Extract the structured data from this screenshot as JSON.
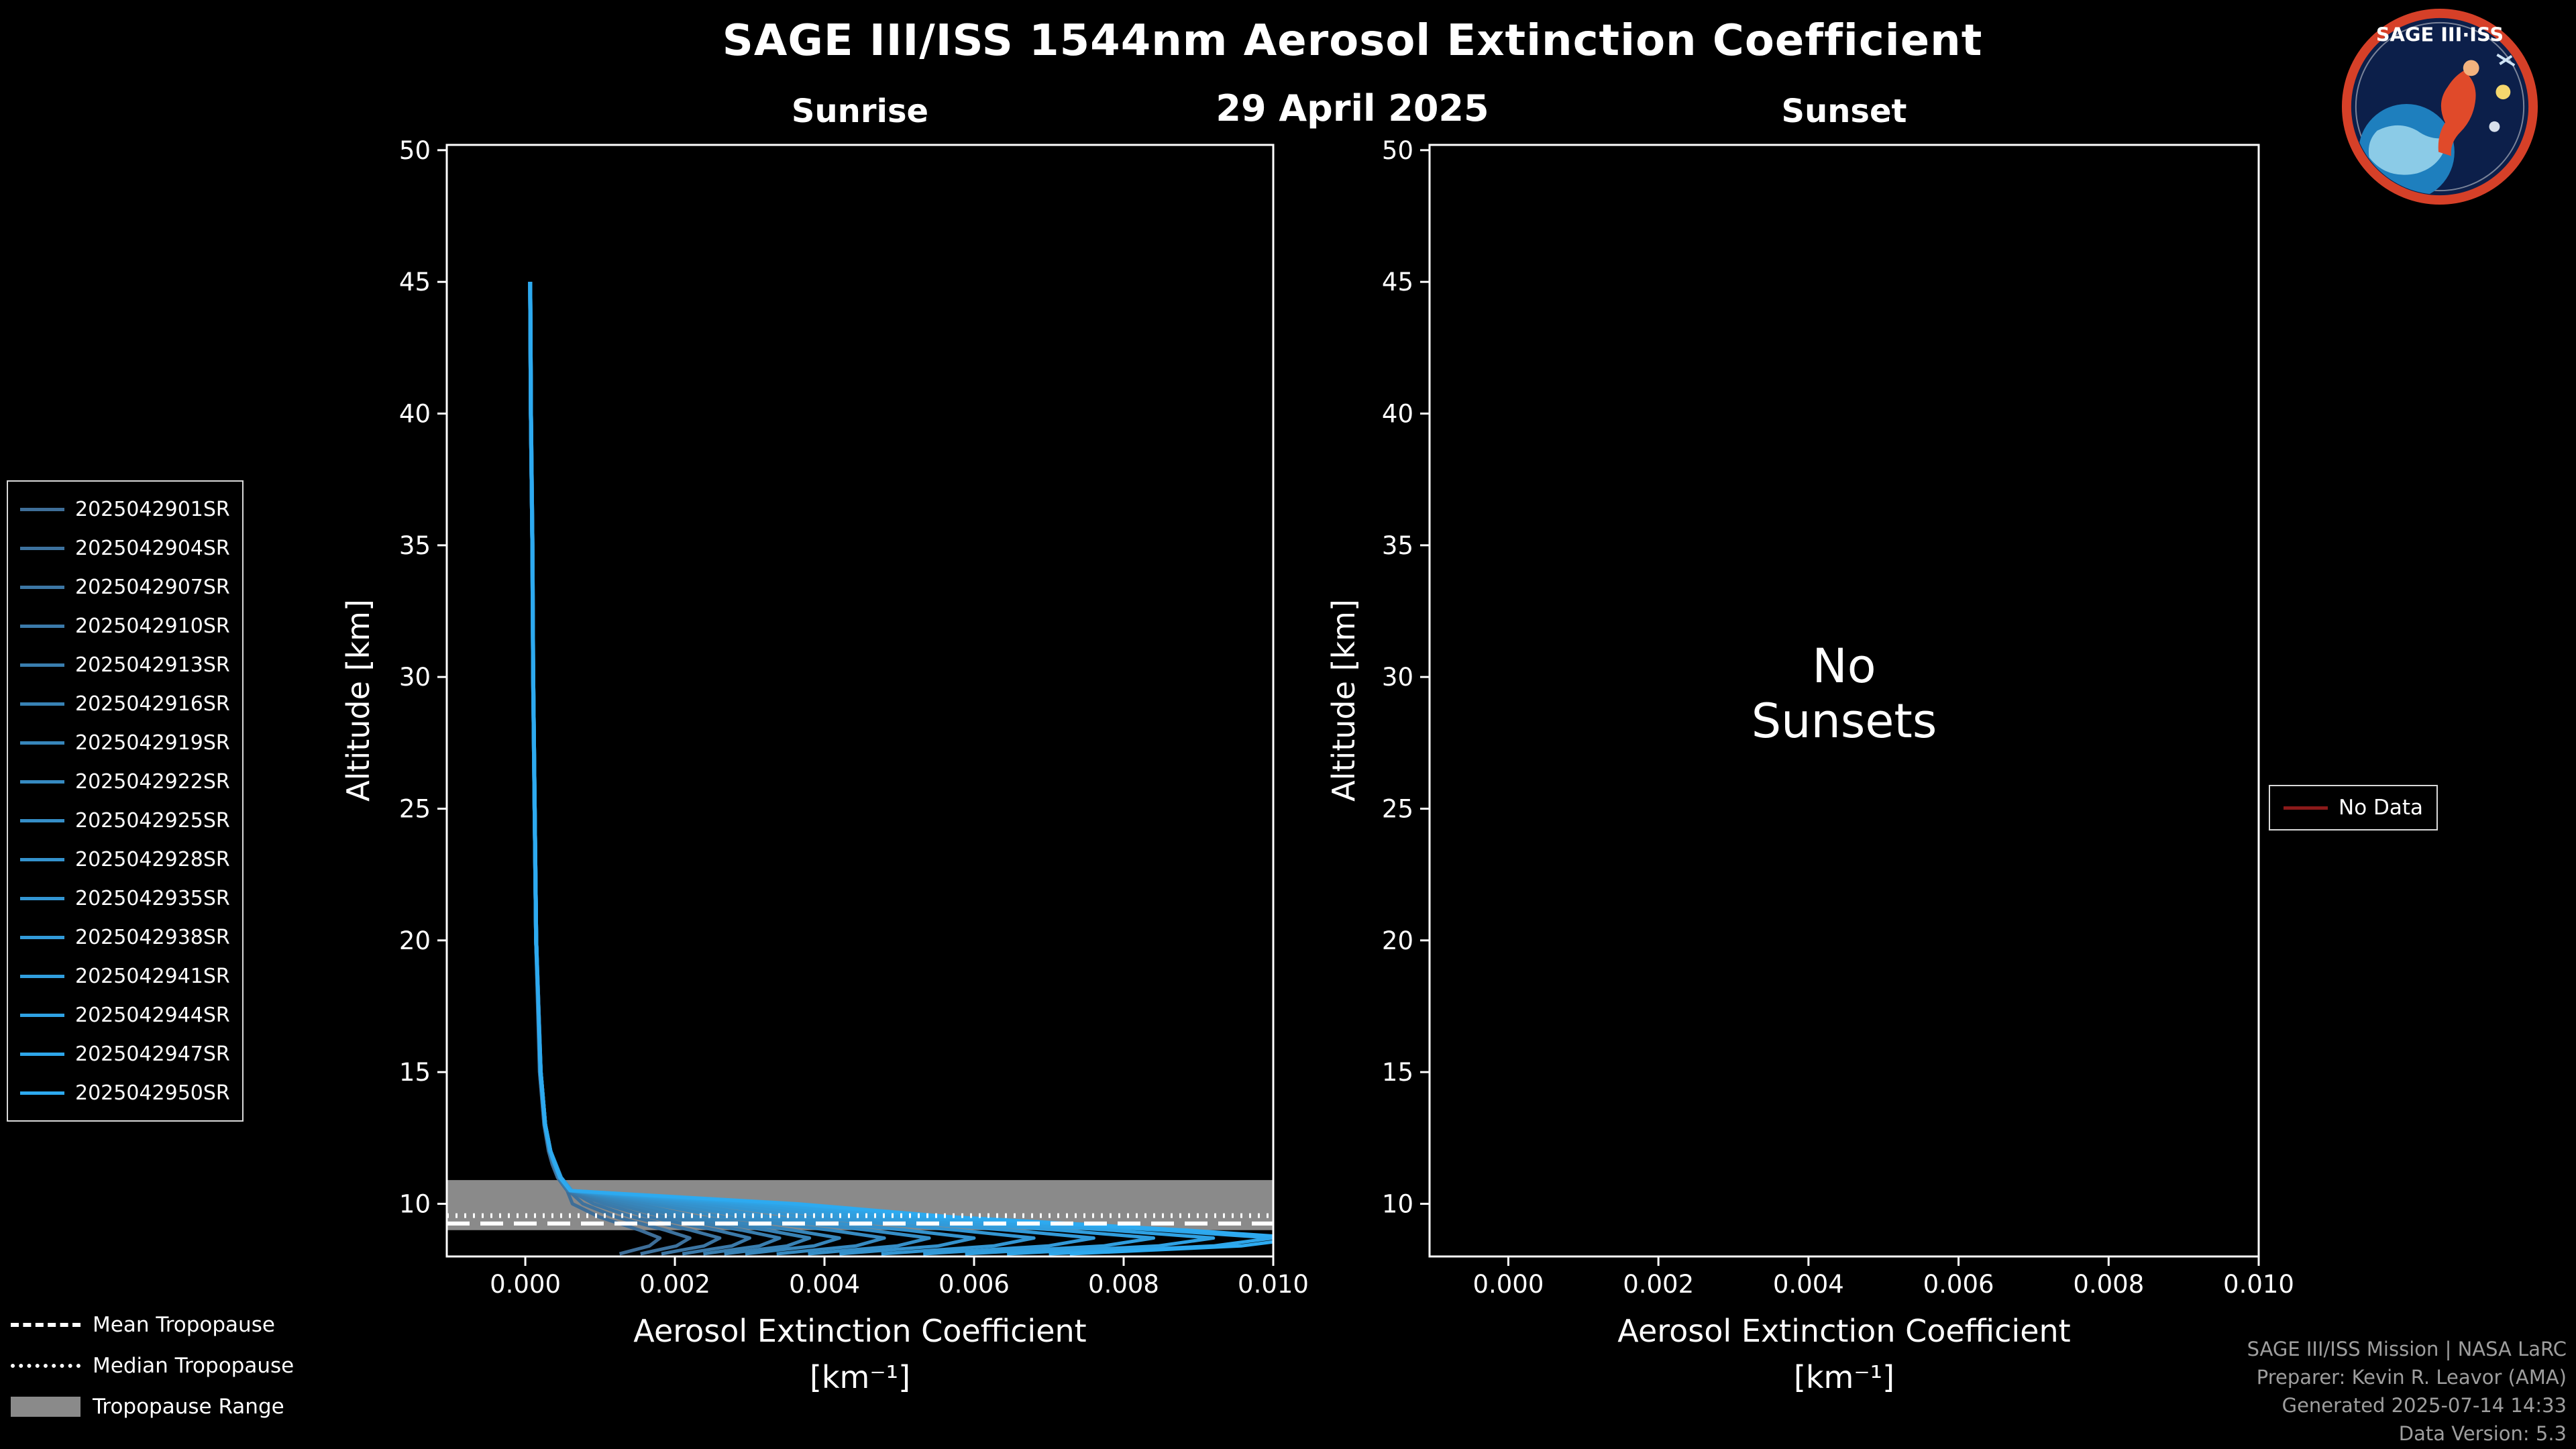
{
  "title": "SAGE III/ISS 1544nm Aerosol Extinction Coefficient",
  "date": "29 April 2025",
  "panels_header": {
    "sunrise": "Sunrise",
    "sunset": "Sunset"
  },
  "ylabel": "Altitude [km]",
  "xlabel_line1": "Aerosol Extinction Coefficient",
  "xlabel_line2": "[km⁻¹]",
  "no_data_legend": {
    "label": "No Data",
    "color": "#8b1a1a"
  },
  "tropopause_legend": {
    "mean": "Mean Tropopause",
    "median": "Median Tropopause",
    "range": "Tropopause Range"
  },
  "credits": [
    "SAGE III/ISS Mission | NASA LaRC",
    "Preparer: Kevin R. Leavor (AMA)",
    "Generated 2025-07-14 14:33",
    "Data Version: 5.3"
  ],
  "logo": {
    "text": "SAGE III·ISS"
  },
  "colors": {
    "background": "#000000",
    "foreground": "#ffffff",
    "band": "#8a8a8a",
    "credit_text": "#9e9e9e",
    "no_data": "#8b1a1a"
  },
  "chart_data": {
    "type": "line",
    "title": "SAGE III/ISS 1544nm Aerosol Extinction Coefficient",
    "xlabel": "Aerosol Extinction Coefficient [km⁻¹]",
    "ylabel": "Altitude [km]",
    "axes": {
      "xlim": [
        -0.00105,
        0.01
      ],
      "ylim": [
        8.0,
        50.2
      ],
      "xticks": [
        0,
        0.002,
        0.004,
        0.006,
        0.008,
        0.01
      ],
      "xtick_labels": [
        "0.000",
        "0.002",
        "0.004",
        "0.006",
        "0.008",
        "0.010"
      ],
      "yticks": [
        10,
        15,
        20,
        25,
        30,
        35,
        40,
        45,
        50
      ],
      "ytick_labels": [
        "10",
        "15",
        "20",
        "25",
        "30",
        "35",
        "40",
        "45",
        "50"
      ]
    },
    "alts": [
      45,
      40,
      35,
      30,
      25,
      20,
      15,
      13,
      12,
      11.5,
      11,
      10.5,
      10,
      9.5,
      9,
      8.7,
      8.4,
      8.1
    ],
    "tropopause": {
      "mean_km": 9.25,
      "median_km": 9.55,
      "range_km": [
        9.0,
        10.9
      ]
    },
    "panels": [
      {
        "id": "sunrise",
        "title": "Sunrise",
        "series": [
          {
            "name": "2025042901SR",
            "color": "#3E6E98",
            "ext": [
              6e-05,
              7e-05,
              9e-05,
              0.0001,
              0.00012,
              0.00014,
              0.00019,
              0.00025,
              0.00031,
              0.00036,
              0.00043,
              0.00056,
              0.00063,
              0.00099,
              0.00153,
              0.0018,
              0.00166,
              0.00126
            ]
          },
          {
            "name": "2025042904SR",
            "color": "#3D729E",
            "ext": [
              7e-05,
              7e-05,
              9e-05,
              0.00011,
              0.00012,
              0.00015,
              0.0002,
              0.00026,
              0.00033,
              0.00038,
              0.00045,
              0.00058,
              0.00077,
              0.00121,
              0.00187,
              0.0022,
              0.00202,
              0.00154
            ]
          },
          {
            "name": "2025042907SR",
            "color": "#3C76A4",
            "ext": [
              6e-05,
              8e-05,
              0.0001,
              0.00011,
              0.00013,
              0.00015,
              0.00021,
              0.00027,
              0.00033,
              0.0004,
              0.00046,
              0.0006,
              0.00091,
              0.00143,
              0.00221,
              0.0026,
              0.00239,
              0.00182
            ]
          },
          {
            "name": "2025042910SR",
            "color": "#3B7AAA",
            "ext": [
              7e-05,
              8e-05,
              9e-05,
              0.0001,
              0.00012,
              0.00014,
              0.0002,
              0.00026,
              0.00032,
              0.00038,
              0.00044,
              0.00057,
              0.00105,
              0.00165,
              0.00255,
              0.003,
              0.00276,
              0.0021
            ]
          },
          {
            "name": "2025042913SR",
            "color": "#397EAF",
            "ext": [
              6e-05,
              7e-05,
              9e-05,
              0.00011,
              0.00013,
              0.00015,
              0.00021,
              0.00027,
              0.00034,
              0.0004,
              0.00047,
              0.00061,
              0.00119,
              0.00187,
              0.00289,
              0.0034,
              0.00313,
              0.00238
            ]
          },
          {
            "name": "2025042916SR",
            "color": "#3882B5",
            "ext": [
              7e-05,
              8e-05,
              0.0001,
              0.00011,
              0.00012,
              0.00014,
              0.0002,
              0.00026,
              0.00033,
              0.00039,
              0.00046,
              0.00059,
              0.00133,
              0.00209,
              0.00323,
              0.0038,
              0.0035,
              0.00266
            ]
          },
          {
            "name": "2025042919SR",
            "color": "#3786BB",
            "ext": [
              6e-05,
              7e-05,
              9e-05,
              0.0001,
              0.00012,
              0.00015,
              0.00021,
              0.00027,
              0.00034,
              0.00041,
              0.00048,
              0.00062,
              0.00147,
              0.00231,
              0.00357,
              0.0042,
              0.00386,
              0.00294
            ]
          },
          {
            "name": "2025042922SR",
            "color": "#368AC1",
            "ext": [
              7e-05,
              8e-05,
              9e-05,
              0.00011,
              0.00013,
              0.00015,
              0.0002,
              0.00026,
              0.00033,
              0.00039,
              0.00046,
              0.0006,
              0.00168,
              0.00264,
              0.00408,
              0.0048,
              0.00442,
              0.00336
            ]
          },
          {
            "name": "2025042925SR",
            "color": "#358EC7",
            "ext": [
              6e-05,
              7e-05,
              9e-05,
              0.0001,
              0.00012,
              0.00014,
              0.00021,
              0.00027,
              0.00034,
              0.0004,
              0.00047,
              0.00061,
              0.00189,
              0.00297,
              0.00459,
              0.0054,
              0.00497,
              0.00378
            ]
          },
          {
            "name": "2025042928SR",
            "color": "#3492CD",
            "ext": [
              7e-05,
              8e-05,
              0.0001,
              0.00011,
              0.00013,
              0.00015,
              0.0002,
              0.00027,
              0.00033,
              0.0004,
              0.00046,
              0.0006,
              0.0021,
              0.0033,
              0.0051,
              0.006,
              0.00552,
              0.0042
            ]
          },
          {
            "name": "2025042935SR",
            "color": "#3396D3",
            "ext": [
              6e-05,
              7e-05,
              9e-05,
              0.00011,
              0.00012,
              0.00014,
              0.00021,
              0.00027,
              0.00034,
              0.0004,
              0.00047,
              0.00061,
              0.00238,
              0.00374,
              0.00578,
              0.0068,
              0.00626,
              0.00476
            ]
          },
          {
            "name": "2025042938SR",
            "color": "#329AD9",
            "ext": [
              7e-05,
              8e-05,
              9e-05,
              0.0001,
              0.00013,
              0.00015,
              0.0002,
              0.00026,
              0.00033,
              0.00039,
              0.00046,
              0.0006,
              0.00266,
              0.00418,
              0.00646,
              0.0076,
              0.00699,
              0.00532
            ]
          },
          {
            "name": "2025042941SR",
            "color": "#309EDE",
            "ext": [
              6e-05,
              7e-05,
              9e-05,
              0.00011,
              0.00012,
              0.00014,
              0.00021,
              0.00027,
              0.00034,
              0.00041,
              0.00048,
              0.00062,
              0.00294,
              0.00462,
              0.00714,
              0.0084,
              0.00773,
              0.00588
            ]
          },
          {
            "name": "2025042944SR",
            "color": "#2FA2E4",
            "ext": [
              7e-05,
              8e-05,
              0.0001,
              0.00011,
              0.00013,
              0.00015,
              0.0002,
              0.00026,
              0.00033,
              0.00039,
              0.00046,
              0.0006,
              0.00322,
              0.00506,
              0.00782,
              0.0092,
              0.00846,
              0.00644
            ]
          },
          {
            "name": "2025042947SR",
            "color": "#2EA6EA",
            "ext": [
              6e-05,
              7e-05,
              9e-05,
              0.0001,
              0.00012,
              0.00014,
              0.00021,
              0.00027,
              0.00034,
              0.0004,
              0.00047,
              0.00061,
              0.0035,
              0.0055,
              0.0085,
              0.01,
              0.0092,
              0.007
            ]
          },
          {
            "name": "2025042950SR",
            "color": "#2DAAF0",
            "ext": [
              7e-05,
              8e-05,
              9e-05,
              0.00011,
              0.00013,
              0.00015,
              0.0002,
              0.00026,
              0.00033,
              0.0004,
              0.00046,
              0.0006,
              0.00364,
              0.00572,
              0.00884,
              0.0104,
              0.00957,
              0.00728
            ]
          }
        ]
      },
      {
        "id": "sunset",
        "title": "Sunset",
        "series": [],
        "annotation_lines": [
          "No",
          "Sunsets"
        ]
      }
    ]
  }
}
